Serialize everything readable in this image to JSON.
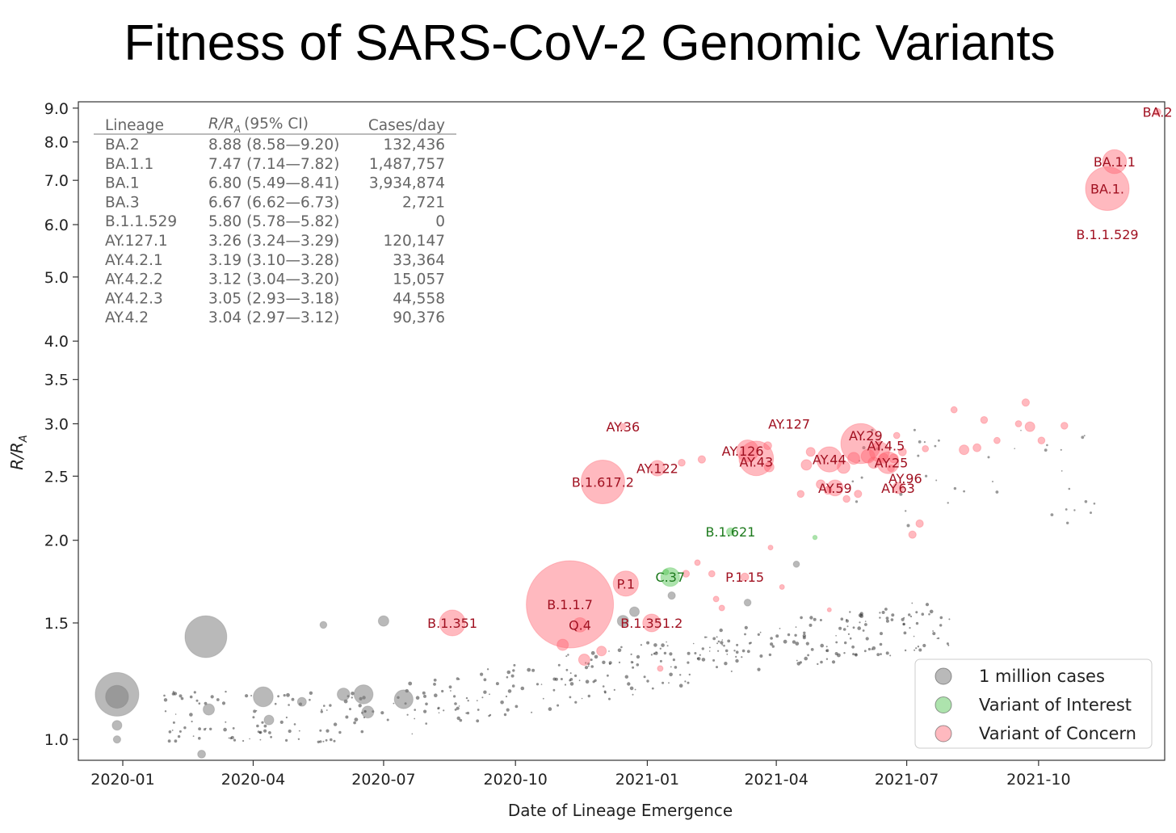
{
  "colors": {
    "gray": "#808080",
    "green": "#5cc85c",
    "red": "#ff6470",
    "label_red": "#a01020",
    "label_green": "#1d7a1d"
  },
  "chart_data": {
    "type": "scatter",
    "title": "Fitness of SARS-CoV-2 Genomic Variants",
    "xlabel": "Date of Lineage Emergence",
    "ylabel_main": "R/R",
    "ylabel_sub": "A",
    "y_scale": "log",
    "ylim": [
      0.93,
      9.2
    ],
    "xlim": [
      "2019-12-01",
      "2021-12-28"
    ],
    "x_ticks": [
      "2020-01",
      "2020-04",
      "2020-07",
      "2020-10",
      "2021-01",
      "2021-04",
      "2021-07",
      "2021-10"
    ],
    "y_ticks": [
      "1.0",
      "1.5",
      "2.0",
      "2.5",
      "3.0",
      "3.5",
      "4.0",
      "5.0",
      "6.0",
      "7.0",
      "8.0",
      "9.0"
    ],
    "table": {
      "headers": [
        "Lineage",
        "R/R",
        "A",
        "(95% CI)",
        "Cases/day"
      ],
      "rows": [
        {
          "lineage": "BA.2",
          "ratio": "8.88 (8.58—9.20)",
          "cases": "132,436"
        },
        {
          "lineage": "BA.1.1",
          "ratio": "7.47 (7.14—7.82)",
          "cases": "1,487,757"
        },
        {
          "lineage": "BA.1",
          "ratio": "6.80 (5.49—8.41)",
          "cases": "3,934,874"
        },
        {
          "lineage": "BA.3",
          "ratio": "6.67 (6.62—6.73)",
          "cases": "2,721"
        },
        {
          "lineage": "B.1.1.529",
          "ratio": "5.80 (5.78—5.82)",
          "cases": "0"
        },
        {
          "lineage": "AY.127.1",
          "ratio": "3.26 (3.24—3.29)",
          "cases": "120,147"
        },
        {
          "lineage": "AY.4.2.1",
          "ratio": "3.19 (3.10—3.28)",
          "cases": "33,364"
        },
        {
          "lineage": "AY.4.2.2",
          "ratio": "3.12 (3.04—3.20)",
          "cases": "15,057"
        },
        {
          "lineage": "AY.4.2.3",
          "ratio": "3.05 (2.93—3.18)",
          "cases": "44,558"
        },
        {
          "lineage": "AY.4.2",
          "ratio": "3.04 (2.97—3.12)",
          "cases": "90,376"
        }
      ]
    },
    "legend": {
      "position": "lower-right",
      "items": [
        {
          "label": "1 million cases",
          "color": "gray"
        },
        {
          "label": "Variant of Interest",
          "color": "green"
        },
        {
          "label": "Variant of Concern",
          "color": "red"
        }
      ]
    },
    "labeled_points": [
      {
        "label": "BA.2",
        "date": "2021-12-23",
        "y": 8.88,
        "size": 0.3,
        "cat": "red",
        "lx": 0,
        "ly": 0
      },
      {
        "label": "BA.1.1",
        "date": "2021-11-23",
        "y": 7.47,
        "size": 3.6,
        "cat": "red",
        "lx": 0,
        "ly": 0
      },
      {
        "label": "BA.1.",
        "date": "2021-11-18",
        "y": 6.8,
        "size": 12.0,
        "cat": "red",
        "lx": 0,
        "ly": 0
      },
      {
        "label": "B.1.1.529",
        "date": "2021-11-18",
        "y": 5.8,
        "size": 0,
        "cat": "red",
        "lx": 0,
        "ly": 0
      },
      {
        "label": "AY.36",
        "date": "2020-12-15",
        "y": 2.97,
        "size": 0.25,
        "cat": "red",
        "lx": 0,
        "ly": 0
      },
      {
        "label": "AY.127",
        "date": "2021-04-10",
        "y": 3.0,
        "size": 0,
        "cat": "red",
        "lx": 0,
        "ly": 0
      },
      {
        "label": "AY.126",
        "date": "2021-03-12",
        "y": 2.73,
        "size": 3.0,
        "cat": "red",
        "lx": -6,
        "ly": 0
      },
      {
        "label": "AY.43",
        "date": "2021-03-18",
        "y": 2.66,
        "size": 7.5,
        "cat": "red",
        "lx": 0,
        "ly": 4
      },
      {
        "label": "AY.122",
        "date": "2021-01-08",
        "y": 2.57,
        "size": 1.5,
        "cat": "red",
        "lx": 0,
        "ly": 0
      },
      {
        "label": "AY.29",
        "date": "2021-05-30",
        "y": 2.8,
        "size": 10.0,
        "cat": "red",
        "lx": 6,
        "ly": -10
      },
      {
        "label": "AY.4.5",
        "date": "2021-06-12",
        "y": 2.72,
        "size": 2.5,
        "cat": "red",
        "lx": 8,
        "ly": -8
      },
      {
        "label": "AY.44",
        "date": "2021-05-08",
        "y": 2.65,
        "size": 4.0,
        "cat": "red",
        "lx": 0,
        "ly": 0
      },
      {
        "label": "AY.25",
        "date": "2021-06-18",
        "y": 2.62,
        "size": 3.0,
        "cat": "red",
        "lx": 4,
        "ly": 0
      },
      {
        "label": "AY.59",
        "date": "2021-05-12",
        "y": 2.4,
        "size": 1.6,
        "cat": "red",
        "lx": 0,
        "ly": 0
      },
      {
        "label": "AY.96",
        "date": "2021-06-30",
        "y": 2.48,
        "size": 0,
        "cat": "red",
        "lx": 0,
        "ly": 0
      },
      {
        "label": "AY.63",
        "date": "2021-06-25",
        "y": 2.4,
        "size": 0.8,
        "cat": "red",
        "lx": 0,
        "ly": 0
      },
      {
        "label": "B.1.617.2",
        "date": "2020-12-01",
        "y": 2.45,
        "size": 12.0,
        "cat": "red",
        "lx": 0,
        "ly": 0
      },
      {
        "label": "B.1.621",
        "date": "2021-02-28",
        "y": 2.06,
        "size": 0.4,
        "cat": "green",
        "lx": 0,
        "ly": 0
      },
      {
        "label": "C.37",
        "date": "2021-01-17",
        "y": 1.76,
        "size": 2.2,
        "cat": "green",
        "lx": 0,
        "ly": 0
      },
      {
        "label": "P.1.15",
        "date": "2021-03-10",
        "y": 1.76,
        "size": 0.4,
        "cat": "red",
        "lx": 0,
        "ly": 0
      },
      {
        "label": "P.1",
        "date": "2020-12-17",
        "y": 1.72,
        "size": 4.0,
        "cat": "red",
        "lx": 0,
        "ly": 0
      },
      {
        "label": "B.1.1.7",
        "date": "2020-11-08",
        "y": 1.6,
        "size": 48.0,
        "cat": "red",
        "lx": 0,
        "ly": 0
      },
      {
        "label": "Q.4",
        "date": "2020-11-15",
        "y": 1.49,
        "size": 1.3,
        "cat": "red",
        "lx": 0,
        "ly": 0
      },
      {
        "label": "B.1.351.2",
        "date": "2021-01-04",
        "y": 1.5,
        "size": 2.0,
        "cat": "red",
        "lx": 0,
        "ly": 0
      },
      {
        "label": "B.1.351",
        "date": "2020-08-18",
        "y": 1.5,
        "size": 4.2,
        "cat": "red",
        "lx": 0,
        "ly": 0
      }
    ],
    "unlabeled_points": [
      {
        "date": "2019-12-28",
        "y": 1.17,
        "size": 12.0,
        "cat": "gray"
      },
      {
        "date": "2019-12-28",
        "y": 1.16,
        "size": 3.3,
        "cat": "gray"
      },
      {
        "date": "2019-12-28",
        "y": 1.05,
        "size": 0.6,
        "cat": "gray"
      },
      {
        "date": "2019-12-28",
        "y": 1.0,
        "size": 0.35,
        "cat": "gray"
      },
      {
        "date": "2020-02-28",
        "y": 1.43,
        "size": 11.0,
        "cat": "gray"
      },
      {
        "date": "2020-04-08",
        "y": 1.16,
        "size": 2.5,
        "cat": "gray"
      },
      {
        "date": "2020-05-20",
        "y": 1.49,
        "size": 0.3,
        "cat": "gray"
      },
      {
        "date": "2020-06-17",
        "y": 1.17,
        "size": 2.3,
        "cat": "gray"
      },
      {
        "date": "2020-07-01",
        "y": 1.51,
        "size": 0.7,
        "cat": "gray"
      },
      {
        "date": "2020-07-15",
        "y": 1.15,
        "size": 2.2,
        "cat": "gray"
      },
      {
        "date": "2020-06-03",
        "y": 1.17,
        "size": 1.0,
        "cat": "gray"
      },
      {
        "date": "2020-02-25",
        "y": 0.95,
        "size": 0.4,
        "cat": "gray"
      },
      {
        "date": "2020-03-01",
        "y": 1.11,
        "size": 0.8,
        "cat": "gray"
      },
      {
        "date": "2020-04-12",
        "y": 1.07,
        "size": 0.6,
        "cat": "gray"
      },
      {
        "date": "2020-06-20",
        "y": 1.1,
        "size": 0.9,
        "cat": "gray"
      },
      {
        "date": "2020-05-05",
        "y": 1.14,
        "size": 0.5,
        "cat": "gray"
      },
      {
        "date": "2020-12-15",
        "y": 1.51,
        "size": 0.8,
        "cat": "gray"
      },
      {
        "date": "2020-12-23",
        "y": 1.56,
        "size": 0.6,
        "cat": "gray"
      },
      {
        "date": "2021-01-18",
        "y": 1.65,
        "size": 0.35,
        "cat": "gray"
      },
      {
        "date": "2021-03-12",
        "y": 1.61,
        "size": 0.3,
        "cat": "gray"
      },
      {
        "date": "2021-04-15",
        "y": 1.84,
        "size": 0.25,
        "cat": "gray"
      },
      {
        "date": "2020-11-03",
        "y": 1.39,
        "size": 0.8,
        "cat": "red"
      },
      {
        "date": "2020-11-18",
        "y": 1.32,
        "size": 0.8,
        "cat": "red"
      },
      {
        "date": "2020-11-30",
        "y": 1.36,
        "size": 0.6,
        "cat": "red"
      },
      {
        "date": "2021-01-25",
        "y": 2.62,
        "size": 0.3,
        "cat": "red"
      },
      {
        "date": "2021-03-27",
        "y": 2.58,
        "size": 0.6,
        "cat": "red"
      },
      {
        "date": "2021-04-25",
        "y": 2.72,
        "size": 0.5,
        "cat": "red"
      },
      {
        "date": "2021-04-22",
        "y": 2.6,
        "size": 0.7,
        "cat": "red"
      },
      {
        "date": "2021-05-02",
        "y": 2.43,
        "size": 0.5,
        "cat": "red"
      },
      {
        "date": "2021-05-18",
        "y": 2.58,
        "size": 1.0,
        "cat": "red"
      },
      {
        "date": "2021-05-25",
        "y": 2.66,
        "size": 0.9,
        "cat": "red"
      },
      {
        "date": "2021-06-04",
        "y": 2.68,
        "size": 1.2,
        "cat": "red"
      },
      {
        "date": "2021-06-08",
        "y": 2.62,
        "size": 0.8,
        "cat": "red"
      },
      {
        "date": "2021-06-15",
        "y": 2.66,
        "size": 0.6,
        "cat": "red"
      },
      {
        "date": "2021-06-22",
        "y": 2.66,
        "size": 0.5,
        "cat": "red"
      },
      {
        "date": "2021-06-28",
        "y": 2.72,
        "size": 0.4,
        "cat": "red"
      },
      {
        "date": "2021-06-24",
        "y": 2.88,
        "size": 0.25,
        "cat": "red"
      },
      {
        "date": "2021-06-20",
        "y": 2.57,
        "size": 0.3,
        "cat": "red"
      },
      {
        "date": "2021-05-07",
        "y": 2.38,
        "size": 0.4,
        "cat": "red"
      },
      {
        "date": "2021-05-20",
        "y": 2.31,
        "size": 0.3,
        "cat": "red"
      },
      {
        "date": "2021-05-28",
        "y": 2.35,
        "size": 0.35,
        "cat": "red"
      },
      {
        "date": "2021-04-18",
        "y": 2.35,
        "size": 0.3,
        "cat": "red"
      },
      {
        "date": "2021-07-10",
        "y": 2.12,
        "size": 0.35,
        "cat": "red"
      },
      {
        "date": "2021-07-14",
        "y": 2.75,
        "size": 0.25,
        "cat": "red"
      },
      {
        "date": "2021-08-10",
        "y": 2.74,
        "size": 0.6,
        "cat": "red"
      },
      {
        "date": "2021-08-19",
        "y": 2.76,
        "size": 0.4,
        "cat": "red"
      },
      {
        "date": "2021-08-24",
        "y": 3.04,
        "size": 0.3,
        "cat": "red"
      },
      {
        "date": "2021-08-03",
        "y": 3.15,
        "size": 0.25,
        "cat": "red"
      },
      {
        "date": "2021-09-22",
        "y": 3.23,
        "size": 0.35,
        "cat": "red"
      },
      {
        "date": "2021-09-25",
        "y": 2.97,
        "size": 0.6,
        "cat": "red"
      },
      {
        "date": "2021-10-03",
        "y": 2.83,
        "size": 0.3,
        "cat": "red"
      },
      {
        "date": "2021-10-19",
        "y": 2.98,
        "size": 0.3,
        "cat": "red"
      },
      {
        "date": "2021-09-17",
        "y": 3.0,
        "size": 0.25,
        "cat": "red"
      },
      {
        "date": "2021-09-02",
        "y": 2.83,
        "size": 0.25,
        "cat": "red"
      },
      {
        "date": "2021-02-08",
        "y": 2.65,
        "size": 0.35,
        "cat": "red"
      },
      {
        "date": "2021-03-26",
        "y": 2.78,
        "size": 0.4,
        "cat": "red"
      },
      {
        "date": "2021-01-28",
        "y": 1.78,
        "size": 0.3,
        "cat": "red"
      },
      {
        "date": "2021-02-05",
        "y": 1.85,
        "size": 0.2,
        "cat": "red"
      },
      {
        "date": "2021-02-15",
        "y": 1.78,
        "size": 0.25,
        "cat": "red"
      },
      {
        "date": "2021-02-18",
        "y": 1.63,
        "size": 0.2,
        "cat": "red"
      },
      {
        "date": "2021-02-22",
        "y": 1.58,
        "size": 0.2,
        "cat": "red"
      },
      {
        "date": "2021-03-28",
        "y": 1.95,
        "size": 0.15,
        "cat": "red"
      },
      {
        "date": "2021-04-05",
        "y": 1.7,
        "size": 0.15,
        "cat": "red"
      },
      {
        "date": "2021-05-08",
        "y": 1.57,
        "size": 0.1,
        "cat": "red"
      },
      {
        "date": "2021-01-10",
        "y": 1.28,
        "size": 0.2,
        "cat": "red"
      },
      {
        "date": "2021-07-05",
        "y": 2.04,
        "size": 0.35,
        "cat": "red"
      },
      {
        "date": "2021-04-28",
        "y": 2.02,
        "size": 0.12,
        "cat": "green"
      },
      {
        "date": "2021-01-14",
        "y": 1.79,
        "size": 0.2,
        "cat": "green"
      }
    ]
  }
}
